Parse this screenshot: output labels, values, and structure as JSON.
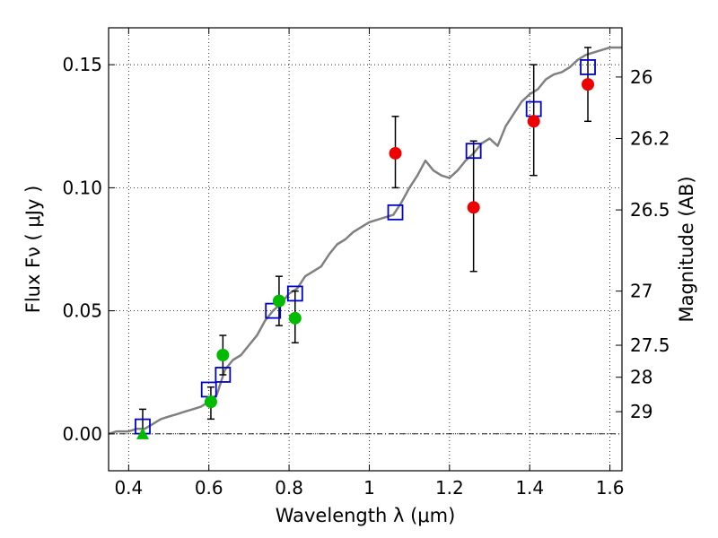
{
  "chart_data": {
    "type": "scatter",
    "xlabel": "Wavelength  λ (μm)",
    "ylabel": "Flux  Fν  ( μJy )",
    "ylabel_right": "Magnitude (AB)",
    "xlim": [
      0.35,
      1.63
    ],
    "ylim": [
      -0.015,
      0.165
    ],
    "x_ticks": [
      0.4,
      0.6,
      0.8,
      1.0,
      1.2,
      1.4,
      1.6
    ],
    "x_tick_labels": [
      "0.4",
      "0.6",
      "0.8",
      "1",
      "1.2",
      "1.4",
      "1.6"
    ],
    "y_ticks": [
      0.0,
      0.05,
      0.1,
      0.15
    ],
    "y_tick_labels": [
      "0.00",
      "0.05",
      "0.10",
      "0.15"
    ],
    "mag_ticks": [
      {
        "flux": 0.145,
        "label": "26"
      },
      {
        "flux": 0.12,
        "label": "26.2"
      },
      {
        "flux": 0.091,
        "label": "26.5"
      },
      {
        "flux": 0.058,
        "label": "27"
      },
      {
        "flux": 0.036,
        "label": "27.5"
      },
      {
        "flux": 0.023,
        "label": "28"
      },
      {
        "flux": 0.009,
        "label": "29"
      }
    ],
    "grid": true,
    "zero_line": 0.0,
    "colors": {
      "model": "#808080",
      "model_box": "#0000cc",
      "red": "#ee0000",
      "green": "#00bb00",
      "errorbar": "#000000"
    },
    "series": [
      {
        "name": "model-spectrum",
        "kind": "line",
        "x": [
          0.35,
          0.37,
          0.39,
          0.4,
          0.42,
          0.44,
          0.46,
          0.48,
          0.5,
          0.52,
          0.54,
          0.56,
          0.58,
          0.6,
          0.61,
          0.62,
          0.63,
          0.64,
          0.66,
          0.68,
          0.7,
          0.72,
          0.74,
          0.76,
          0.78,
          0.8,
          0.82,
          0.84,
          0.86,
          0.88,
          0.9,
          0.92,
          0.94,
          0.96,
          0.98,
          1.0,
          1.02,
          1.04,
          1.06,
          1.08,
          1.1,
          1.12,
          1.14,
          1.16,
          1.18,
          1.2,
          1.22,
          1.24,
          1.26,
          1.28,
          1.3,
          1.32,
          1.34,
          1.36,
          1.38,
          1.4,
          1.42,
          1.44,
          1.46,
          1.48,
          1.5,
          1.52,
          1.54,
          1.56,
          1.58,
          1.6,
          1.63
        ],
        "y": [
          0.0,
          0.001,
          0.001,
          0.001,
          0.002,
          0.002,
          0.004,
          0.006,
          0.007,
          0.008,
          0.009,
          0.01,
          0.011,
          0.013,
          0.014,
          0.016,
          0.021,
          0.026,
          0.03,
          0.032,
          0.036,
          0.04,
          0.046,
          0.05,
          0.053,
          0.057,
          0.059,
          0.064,
          0.066,
          0.068,
          0.073,
          0.077,
          0.079,
          0.082,
          0.084,
          0.086,
          0.087,
          0.088,
          0.089,
          0.094,
          0.1,
          0.105,
          0.111,
          0.107,
          0.105,
          0.104,
          0.107,
          0.111,
          0.114,
          0.118,
          0.12,
          0.117,
          0.125,
          0.13,
          0.135,
          0.138,
          0.14,
          0.144,
          0.146,
          0.147,
          0.149,
          0.152,
          0.154,
          0.155,
          0.156,
          0.157,
          0.157
        ]
      },
      {
        "name": "model-photometry",
        "kind": "open-square",
        "x": [
          0.435,
          0.6,
          0.635,
          0.76,
          0.815,
          1.065,
          1.26,
          1.41,
          1.545
        ],
        "y": [
          0.003,
          0.018,
          0.024,
          0.05,
          0.057,
          0.09,
          0.115,
          0.132,
          0.149
        ]
      },
      {
        "name": "observed-red",
        "kind": "filled-circle",
        "x": [
          1.065,
          1.26,
          1.41,
          1.545
        ],
        "y": [
          0.114,
          0.092,
          0.127,
          0.142
        ],
        "yerr_low": [
          0.1,
          0.066,
          0.105,
          0.127
        ],
        "yerr_high": [
          0.129,
          0.119,
          0.15,
          0.157
        ]
      },
      {
        "name": "observed-green",
        "kind": "filled-circle",
        "x": [
          0.605,
          0.635,
          0.775,
          0.815
        ],
        "y": [
          0.013,
          0.032,
          0.054,
          0.047
        ],
        "yerr_low": [
          0.006,
          0.024,
          0.044,
          0.037
        ],
        "yerr_high": [
          0.019,
          0.04,
          0.064,
          0.058
        ]
      },
      {
        "name": "observed-green-upper-limit",
        "kind": "triangle",
        "x": [
          0.435
        ],
        "y": [
          0.0
        ],
        "yerr_low": [
          0.0
        ],
        "yerr_high": [
          0.01
        ]
      }
    ]
  }
}
